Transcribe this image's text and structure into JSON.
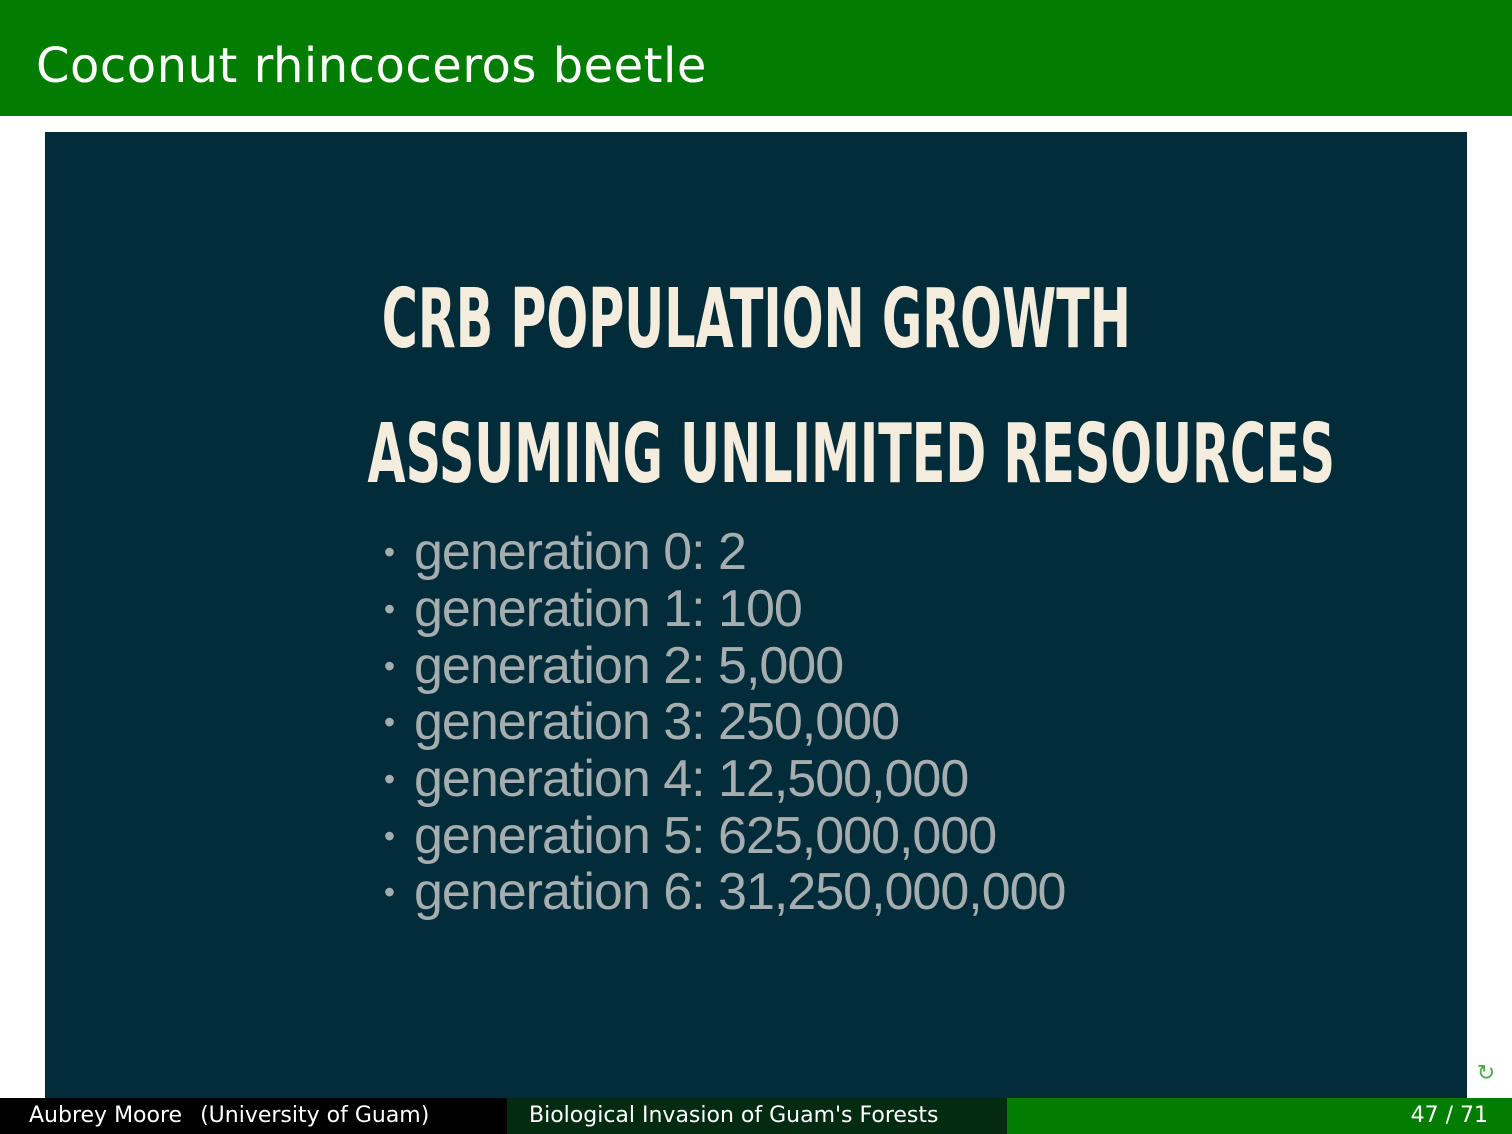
{
  "slide": {
    "title": "Coconut rhincoceros beetle"
  },
  "image": {
    "heading_line1": "CRB POPULATION GROWTH",
    "heading_line2": "ASSUMING UNLIMITED RESOURCES",
    "bullet_symbol": "•",
    "generations": [
      "generation 0: 2",
      "generation 1: 100",
      "generation 2: 5,000",
      "generation 3: 250,000",
      "generation 4: 12,500,000",
      "generation 5: 625,000,000",
      "generation 6: 31,250,000,000"
    ]
  },
  "nav": {
    "reload_icon": "↻"
  },
  "footer": {
    "author": "Aubrey Moore",
    "institute": "(University of Guam)",
    "talk_title": "Biological Invasion of Guam's Forests",
    "page": "47 / 71"
  },
  "colors": {
    "title_bar": "#037d01",
    "image_background": "#022c3a",
    "heading_text": "#f4ecdc",
    "list_text": "#a5adaf"
  }
}
